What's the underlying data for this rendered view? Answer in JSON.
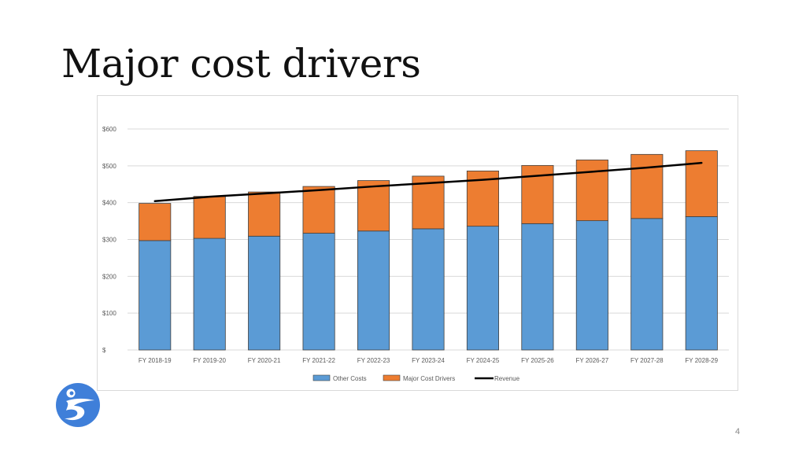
{
  "slide": {
    "title": "Major cost drivers",
    "page_number": "4"
  },
  "chart_data": {
    "type": "bar",
    "stacked": true,
    "title": "",
    "xlabel": "",
    "ylabel": "",
    "categories": [
      "FY 2018-19",
      "FY 2019-20",
      "FY 2020-21",
      "FY 2021-22",
      "FY 2022-23",
      "FY 2023-24",
      "FY 2024-25",
      "FY 2025-26",
      "FY 2026-27",
      "FY 2027-28",
      "FY 2028-29"
    ],
    "series": [
      {
        "name": "Other Costs",
        "kind": "bar",
        "color": "#5b9bd5",
        "values": [
          297,
          303,
          309,
          317,
          323,
          329,
          336,
          343,
          351,
          357,
          362
        ]
      },
      {
        "name": "Major Cost Drivers",
        "kind": "bar",
        "color": "#ed7d31",
        "values": [
          101,
          114,
          120,
          127,
          137,
          143,
          150,
          158,
          165,
          174,
          179
        ]
      },
      {
        "name": "Revenue",
        "kind": "line",
        "color": "#000000",
        "values": [
          404,
          416,
          425,
          434,
          444,
          453,
          462,
          473,
          484,
          495,
          508
        ]
      }
    ],
    "ylim": [
      0,
      600
    ],
    "yticks": [
      0,
      100,
      200,
      300,
      400,
      500,
      600
    ],
    "ytick_labels": [
      "$",
      "$100",
      "$200",
      "$300",
      "$400",
      "$500",
      "$600"
    ],
    "grid": true,
    "legend": "bottom"
  }
}
